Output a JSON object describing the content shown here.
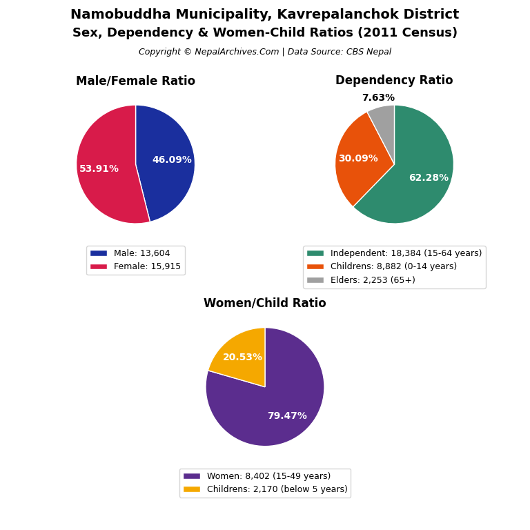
{
  "title": "Namobuddha Municipality, Kavrepalanchok District",
  "subtitle": "Sex, Dependency & Women-Child Ratios (2011 Census)",
  "annotations": [
    "Copyright © NepalArchives.Com | Data Source: CBS Nepal"
  ],
  "chart_data": [
    {
      "type": "pie",
      "title": "Male/Female Ratio",
      "categories": [
        "Male: 13,604",
        "Female: 15,915"
      ],
      "values": [
        46.09,
        53.91
      ],
      "value_labels": [
        "46.09%",
        "53.91%"
      ],
      "colors": [
        "#1a2f9e",
        "#d81b4a"
      ],
      "data_labels": true,
      "legend": "upper center"
    },
    {
      "type": "pie",
      "title": "Dependency Ratio",
      "categories": [
        "Independent: 18,384 (15-64 years)",
        "Childrens: 8,882 (0-14 years)",
        "Elders: 2,253 (65+)"
      ],
      "values": [
        62.28,
        30.09,
        7.63
      ],
      "value_labels": [
        "62.28%",
        "30.09%",
        "7.63%"
      ],
      "colors": [
        "#2e8b6e",
        "#e8520a",
        "#a0a0a0"
      ],
      "data_labels": true,
      "legend": "upper center"
    },
    {
      "type": "pie",
      "title": "Women/Child Ratio",
      "categories": [
        "Women: 8,402 (15-49 years)",
        "Childrens: 2,170 (below 5 years)"
      ],
      "values": [
        79.47,
        20.53
      ],
      "value_labels": [
        "79.47%",
        "20.53%"
      ],
      "colors": [
        "#5b2d8e",
        "#f5a800"
      ],
      "data_labels": true,
      "legend": "upper center"
    }
  ]
}
